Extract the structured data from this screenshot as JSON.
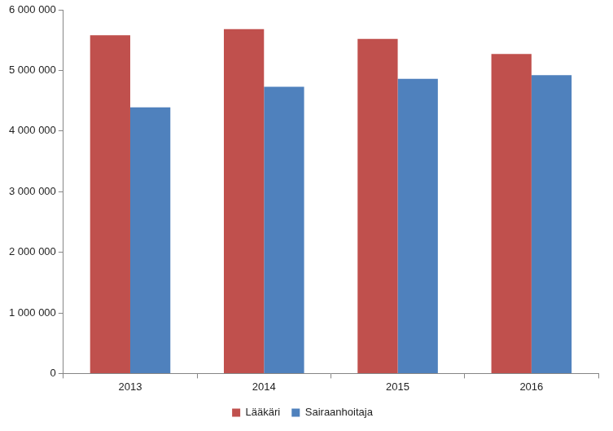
{
  "chart_data": {
    "type": "bar",
    "categories": [
      "2013",
      "2014",
      "2015",
      "2016"
    ],
    "series": [
      {
        "name": "Lääkäri",
        "color": "#c0504d",
        "values": [
          5580000,
          5680000,
          5520000,
          5270000
        ]
      },
      {
        "name": "Sairaanhoitaja",
        "color": "#4f81bd",
        "values": [
          4390000,
          4730000,
          4860000,
          4920000
        ]
      }
    ],
    "ylim": [
      0,
      6000000
    ],
    "yticks": [
      0,
      {
        "value": 1000000,
        "label": "1 000 000"
      },
      {
        "value": 2000000,
        "label": "2 000 000"
      },
      {
        "value": 3000000,
        "label": "3 000 000"
      },
      {
        "value": 4000000,
        "label": "4 000 000"
      },
      {
        "value": 5000000,
        "label": "5 000 000"
      },
      {
        "value": 6000000,
        "label": "6 000 000"
      }
    ],
    "grid": false,
    "legend": "bottom"
  }
}
